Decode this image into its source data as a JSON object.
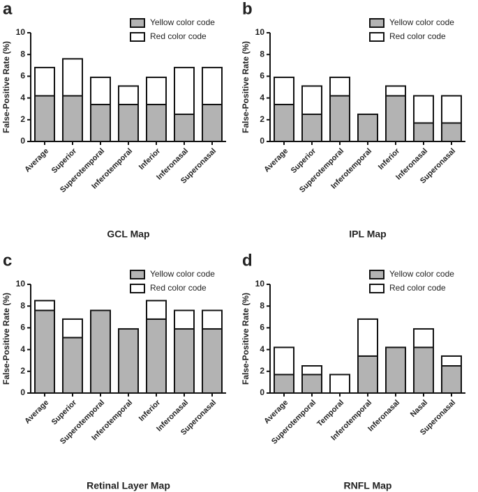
{
  "chart_data": [
    {
      "type": "bar",
      "label": "a",
      "xlabel": "GCL Map",
      "ylabel": "False-Positive Rate (%)",
      "categories": [
        "Average",
        "Superior",
        "Superotemporal",
        "Inferotemporal",
        "Inferior",
        "Inferonasal",
        "Superonasal"
      ],
      "series": [
        {
          "name": "Yellow color code",
          "color": "#b3b3b3",
          "values": [
            4.2,
            4.2,
            3.4,
            3.4,
            3.4,
            2.5,
            3.4
          ]
        },
        {
          "name": "Red color code",
          "color": "#ffffff",
          "values": [
            2.6,
            3.4,
            2.5,
            1.7,
            2.5,
            4.3,
            3.4
          ]
        }
      ],
      "stacked": true,
      "ylim": [
        0,
        10
      ],
      "yticks": [
        0,
        2,
        4,
        6,
        8,
        10
      ]
    },
    {
      "type": "bar",
      "label": "b",
      "xlabel": "IPL Map",
      "ylabel": "False-Positive Rate (%)",
      "categories": [
        "Average",
        "Superior",
        "Superotemporal",
        "Inferotemporal",
        "Inferior",
        "Inferonasal",
        "Superonasal"
      ],
      "series": [
        {
          "name": "Yellow color code",
          "color": "#b3b3b3",
          "values": [
            3.4,
            2.5,
            4.2,
            2.5,
            4.2,
            1.7,
            1.7
          ]
        },
        {
          "name": "Red color code",
          "color": "#ffffff",
          "values": [
            2.5,
            2.6,
            1.7,
            0,
            0.9,
            2.5,
            2.5
          ]
        }
      ],
      "stacked": true,
      "ylim": [
        0,
        10
      ],
      "yticks": [
        0,
        2,
        4,
        6,
        8,
        10
      ]
    },
    {
      "type": "bar",
      "label": "c",
      "xlabel": "Retinal Layer Map",
      "ylabel": "False-Positive Rate (%)",
      "categories": [
        "Average",
        "Superior",
        "Superotemporal",
        "Inferotemporal",
        "Inferior",
        "Inferonasal",
        "Superonasal"
      ],
      "series": [
        {
          "name": "Yellow color code",
          "color": "#b3b3b3",
          "values": [
            7.6,
            5.1,
            7.6,
            5.9,
            6.8,
            5.9,
            5.9
          ]
        },
        {
          "name": "Red color code",
          "color": "#ffffff",
          "values": [
            0.9,
            1.7,
            0,
            0,
            1.7,
            1.7,
            1.7
          ]
        }
      ],
      "stacked": true,
      "ylim": [
        0,
        10
      ],
      "yticks": [
        0,
        2,
        4,
        6,
        8,
        10
      ]
    },
    {
      "type": "bar",
      "label": "d",
      "xlabel": "RNFL Map",
      "ylabel": "False-Positive Rate (%)",
      "categories": [
        "Average",
        "Superotemporal",
        "Temporal",
        "Inferotemporal",
        "Inferonasal",
        "Nasal",
        "Superonasal"
      ],
      "series": [
        {
          "name": "Yellow color code",
          "color": "#b3b3b3",
          "values": [
            1.7,
            1.7,
            0,
            3.4,
            4.2,
            4.2,
            2.5
          ]
        },
        {
          "name": "Red color code",
          "color": "#ffffff",
          "values": [
            2.5,
            0.8,
            1.7,
            3.4,
            0,
            1.7,
            0.9
          ]
        }
      ],
      "stacked": true,
      "ylim": [
        0,
        10
      ],
      "yticks": [
        0,
        2,
        4,
        6,
        8,
        10
      ]
    }
  ]
}
